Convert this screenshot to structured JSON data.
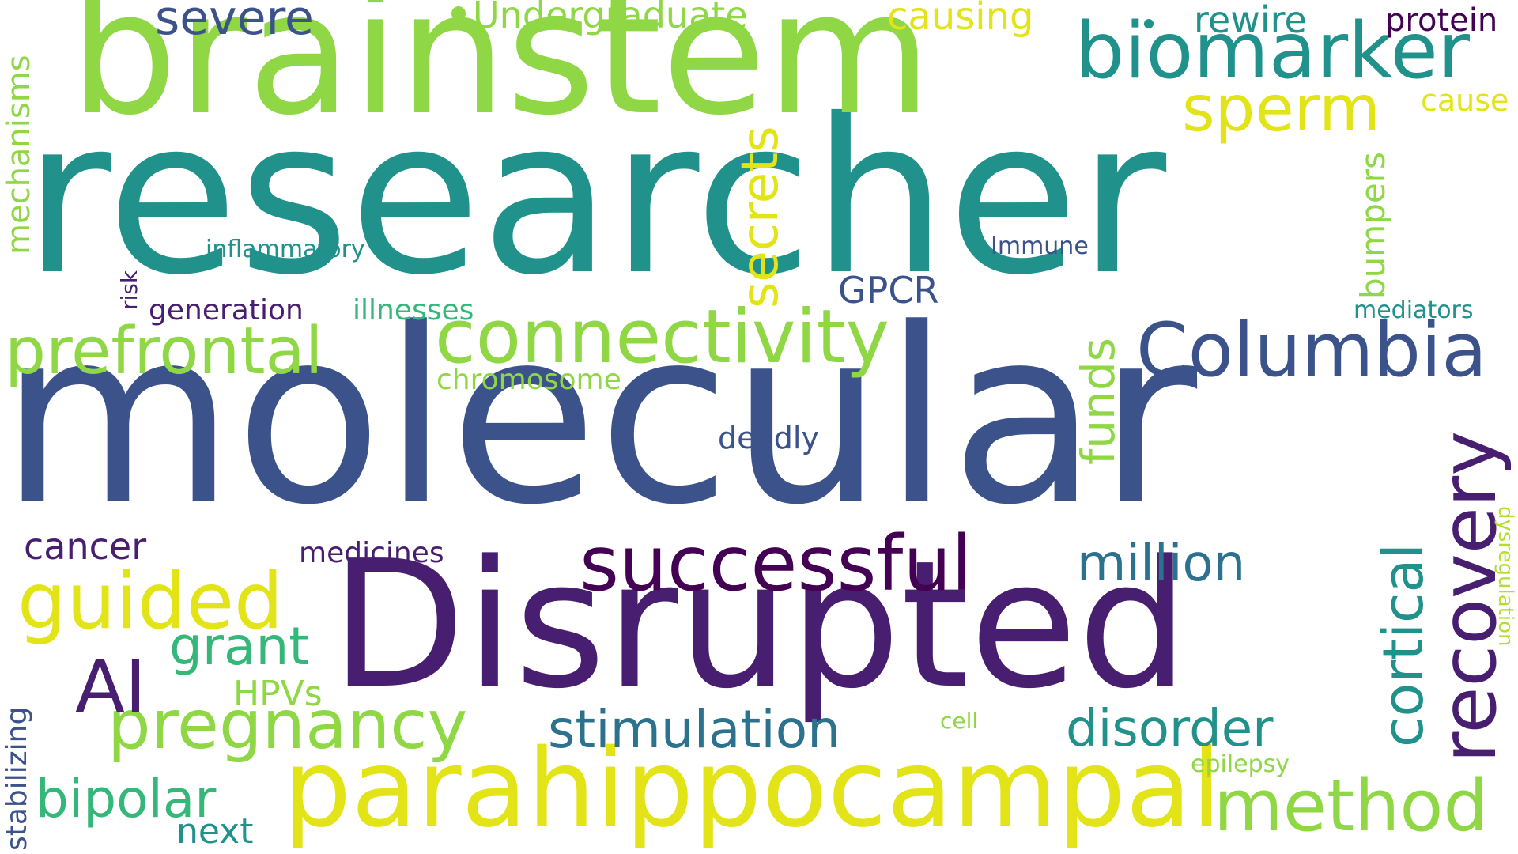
{
  "words": {
    "researcher": "researcher",
    "brainstem": "brainstem",
    "molecular": "molecular",
    "disrupted": "Disrupted",
    "parahippocampal": "parahippocampal",
    "biomarker": "biomarker",
    "connectivity": "connectivity",
    "successful": "successful",
    "columbia": "Columbia",
    "recovery": "recovery",
    "guided": "guided",
    "prefrontal": "prefrontal",
    "pregnancy": "pregnancy",
    "method": "method",
    "cortical": "cortical",
    "secrets": "secrets",
    "sperm": "sperm",
    "stimulation": "stimulation",
    "disorder": "disorder",
    "million": "million",
    "bipolar": "bipolar",
    "grant": "grant",
    "ai": "AI",
    "funds": "funds",
    "severe": "severe",
    "undergraduate": "Undergraduate",
    "causing": "causing",
    "rewire": "rewire",
    "protein": "protein",
    "cause": "cause",
    "mechanisms": "mechanisms",
    "bumpers": "bumpers",
    "gpcr": "GPCR",
    "inflammatory": "inflammatory",
    "immune": "Immune",
    "generation": "generation",
    "illnesses": "illnesses",
    "chromosome": "chromosome",
    "mediators": "mediators",
    "risk": "risk",
    "deadly": "deadly",
    "cancer": "cancer",
    "medicines": "medicines",
    "hpvs": "HPVs",
    "next": "next",
    "stabilizing": "stabilizing",
    "cell": "cell",
    "epilepsy": "epilepsy",
    "dysregulation": "dysregulation"
  },
  "colors": {
    "teal": "#21918c",
    "green": "#8fd744",
    "navy": "#3b528b",
    "purple": "#481f70",
    "yellow": "#e2e418",
    "darkpurple": "#440154"
  }
}
